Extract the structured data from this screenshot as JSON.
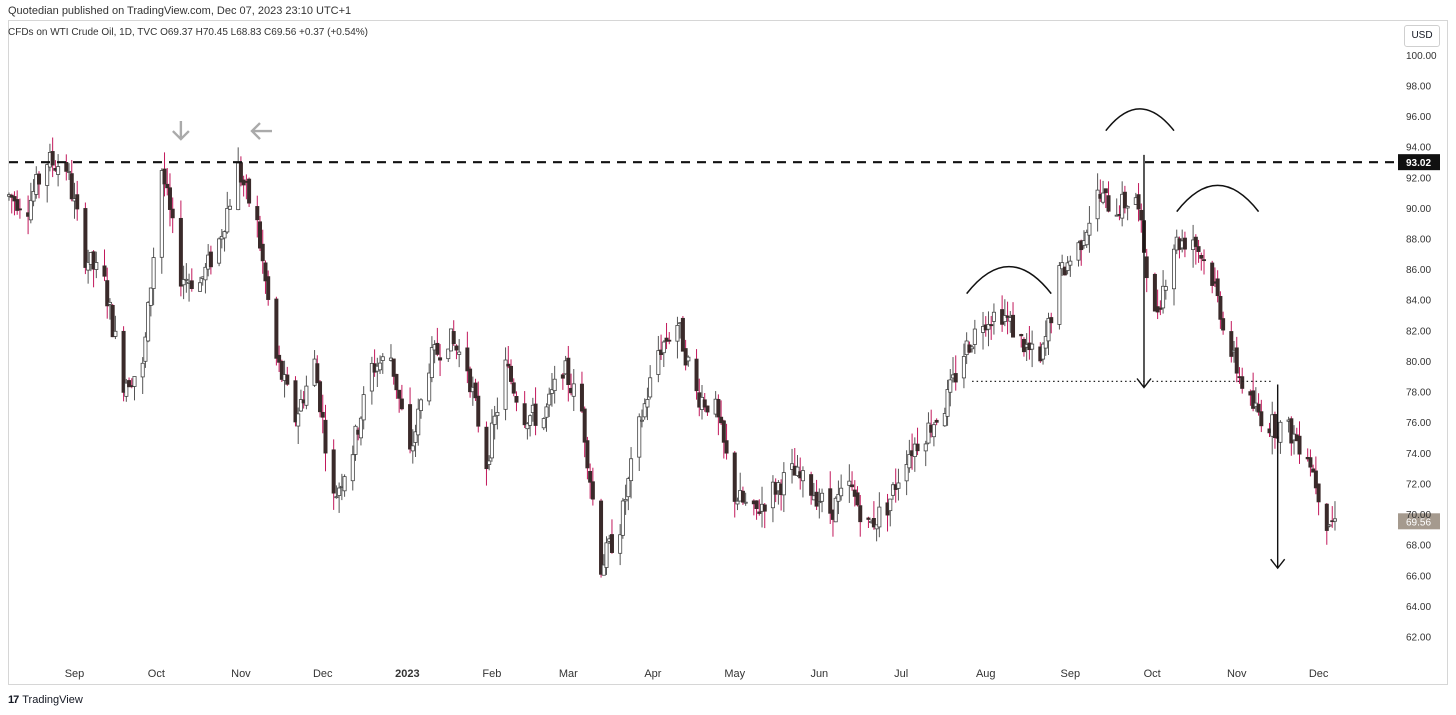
{
  "header": {
    "published": "Quotedian published on TradingView.com, Dec 07, 2023 23:10 UTC+1",
    "symbol_line": "CFDs on WTI Crude Oil, 1D, TVC  O69.37  H70.45  L68.83  C69.56  +0.37 (+0.54%)"
  },
  "currency": "USD",
  "footer": {
    "brand": "TradingView",
    "logo": "17"
  },
  "chart_data": {
    "type": "candlestick",
    "y_ticks": [
      "100.00",
      "98.00",
      "96.00",
      "94.00",
      "92.00",
      "90.00",
      "88.00",
      "86.00",
      "84.00",
      "82.00",
      "80.00",
      "78.00",
      "76.00",
      "74.00",
      "72.00",
      "70.00",
      "68.00",
      "66.00",
      "64.00",
      "62.00"
    ],
    "y_tick_values": [
      100,
      98,
      96,
      94,
      92,
      90,
      88,
      86,
      84,
      82,
      80,
      78,
      76,
      74,
      72,
      70,
      68,
      66,
      64,
      62
    ],
    "x_ticks": [
      "Sep",
      "Oct",
      "Nov",
      "Dec",
      "2023",
      "Feb",
      "Mar",
      "Apr",
      "May",
      "Jun",
      "Jul",
      "Aug",
      "Sep",
      "Oct",
      "Nov",
      "Dec"
    ],
    "x_tick_dates": [
      "2022-09-01",
      "2022-10-01",
      "2022-11-01",
      "2022-12-01",
      "2023-01-01",
      "2023-02-01",
      "2023-03-01",
      "2023-04-01",
      "2023-05-01",
      "2023-06-01",
      "2023-07-01",
      "2023-08-01",
      "2023-09-01",
      "2023-10-01",
      "2023-11-01",
      "2023-12-01"
    ],
    "x_range": [
      "2022-08-08",
      "2023-12-29"
    ],
    "ylim": [
      60.5,
      101
    ],
    "resistance_level": 93.02,
    "resistance_label": "93.02",
    "neckline_level": 78.7,
    "last_price": 69.56,
    "last_price_label": "69.56",
    "annotations": {
      "arrows_down_at": [
        [
          "2022-10-10",
          94.4
        ],
        [
          "2022-11-08",
          94.4
        ]
      ],
      "shoulders_arcs": [
        [
          "2023-07-25",
          "2023-08-25",
          86.2
        ],
        [
          "2023-09-14",
          "2023-10-09",
          96.5
        ],
        [
          "2023-10-10",
          "2023-11-09",
          91.5
        ]
      ],
      "target_arrows": [
        [
          "2023-09-28",
          93.5,
          78.3
        ],
        [
          "2023-11-16",
          78.5,
          66.5
        ]
      ],
      "neckline_range": [
        "2023-07-27",
        "2023-11-14"
      ]
    },
    "close_series": [
      [
        "2022-08-08",
        90.8
      ],
      [
        "2022-08-15",
        90.2
      ],
      [
        "2022-08-22",
        93.1
      ],
      [
        "2022-08-29",
        92.7
      ],
      [
        "2022-09-05",
        86.9
      ],
      [
        "2022-09-12",
        85.1
      ],
      [
        "2022-09-19",
        78.7
      ],
      [
        "2022-09-26",
        79.5
      ],
      [
        "2022-10-03",
        92.6
      ],
      [
        "2022-10-10",
        85.6
      ],
      [
        "2022-10-17",
        85.1
      ],
      [
        "2022-10-24",
        87.9
      ],
      [
        "2022-10-31",
        92.6
      ],
      [
        "2022-11-07",
        88.9
      ],
      [
        "2022-11-14",
        80.1
      ],
      [
        "2022-11-21",
        76.3
      ],
      [
        "2022-11-28",
        79.9
      ],
      [
        "2022-12-05",
        71.0
      ],
      [
        "2022-12-12",
        74.3
      ],
      [
        "2022-12-19",
        79.6
      ],
      [
        "2022-12-26",
        80.3
      ],
      [
        "2023-01-02",
        73.8
      ],
      [
        "2023-01-09",
        79.9
      ],
      [
        "2023-01-16",
        81.6
      ],
      [
        "2023-01-23",
        79.7
      ],
      [
        "2023-01-30",
        73.4
      ],
      [
        "2023-02-06",
        79.7
      ],
      [
        "2023-02-13",
        76.5
      ],
      [
        "2023-02-20",
        76.3
      ],
      [
        "2023-02-27",
        79.7
      ],
      [
        "2023-03-06",
        76.7
      ],
      [
        "2023-03-13",
        66.7
      ],
      [
        "2023-03-20",
        69.3
      ],
      [
        "2023-03-27",
        75.7
      ],
      [
        "2023-04-03",
        80.7
      ],
      [
        "2023-04-10",
        82.5
      ],
      [
        "2023-04-17",
        77.9
      ],
      [
        "2023-04-24",
        76.8
      ],
      [
        "2023-05-01",
        71.3
      ],
      [
        "2023-05-08",
        70.0
      ],
      [
        "2023-05-15",
        71.6
      ],
      [
        "2023-05-22",
        72.7
      ],
      [
        "2023-05-29",
        71.7
      ],
      [
        "2023-06-05",
        70.2
      ],
      [
        "2023-06-12",
        71.8
      ],
      [
        "2023-06-19",
        69.2
      ],
      [
        "2023-06-26",
        70.6
      ],
      [
        "2023-07-03",
        73.9
      ],
      [
        "2023-07-10",
        75.4
      ],
      [
        "2023-07-17",
        77.1
      ],
      [
        "2023-07-24",
        80.6
      ],
      [
        "2023-07-31",
        82.8
      ],
      [
        "2023-08-07",
        83.2
      ],
      [
        "2023-08-14",
        81.3
      ],
      [
        "2023-08-21",
        79.8
      ],
      [
        "2023-08-28",
        85.6
      ],
      [
        "2023-09-04",
        87.5
      ],
      [
        "2023-09-11",
        90.8
      ],
      [
        "2023-09-18",
        90.0
      ],
      [
        "2023-09-25",
        90.8
      ],
      [
        "2023-10-02",
        82.8
      ],
      [
        "2023-10-09",
        87.7
      ],
      [
        "2023-10-16",
        88.1
      ],
      [
        "2023-10-23",
        85.5
      ],
      [
        "2023-10-30",
        80.5
      ],
      [
        "2023-11-06",
        77.2
      ],
      [
        "2023-11-13",
        75.9
      ],
      [
        "2023-11-20",
        75.5
      ],
      [
        "2023-11-27",
        74.1
      ],
      [
        "2023-12-04",
        69.6
      ]
    ]
  }
}
